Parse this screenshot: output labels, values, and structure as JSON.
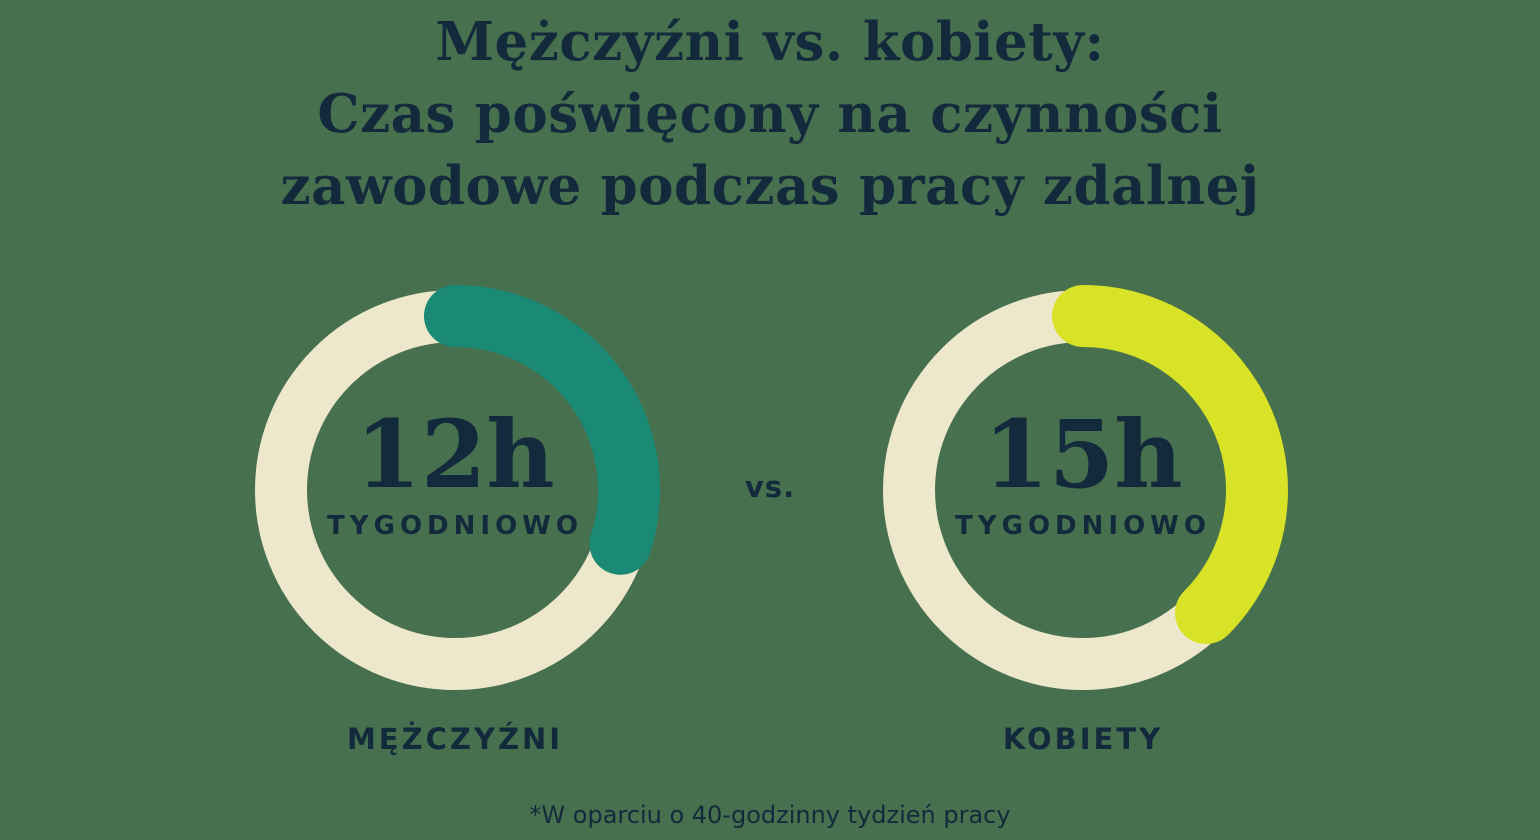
{
  "page": {
    "background_color": "#47704E",
    "text_color": "#13293C"
  },
  "title": {
    "lines": [
      "Mężczyźni vs. kobiety:",
      "Czas poświęcony na czynności",
      "zawodowe podczas pracy zdalnej"
    ]
  },
  "separator": "vs.",
  "footnote": "*W oparciu o 40-godzinny tydzień pracy",
  "chart_data": {
    "type": "donut",
    "title": "Mężczyźni vs. kobiety: Czas poświęcony na czynności zawodowe podczas pracy zdalnej",
    "note": "*W oparciu o 40-godzinny tydzień pracy",
    "total_hours_per_week": 40,
    "track_color": "#EDE8CC",
    "charts": [
      {
        "category": "MĘŻCZYŹNI",
        "hours_per_week": 12,
        "fraction_of_week": 0.3,
        "value_label": "12h",
        "unit_label": "TYGODNIOWO",
        "arc_color": "#1A8A74",
        "track_color": "#EDE8CC"
      },
      {
        "category": "KOBIETY",
        "hours_per_week": 15,
        "fraction_of_week": 0.375,
        "value_label": "15h",
        "unit_label": "TYGODNIOWO",
        "arc_color": "#D8E227",
        "track_color": "#EDE8CC"
      }
    ]
  }
}
